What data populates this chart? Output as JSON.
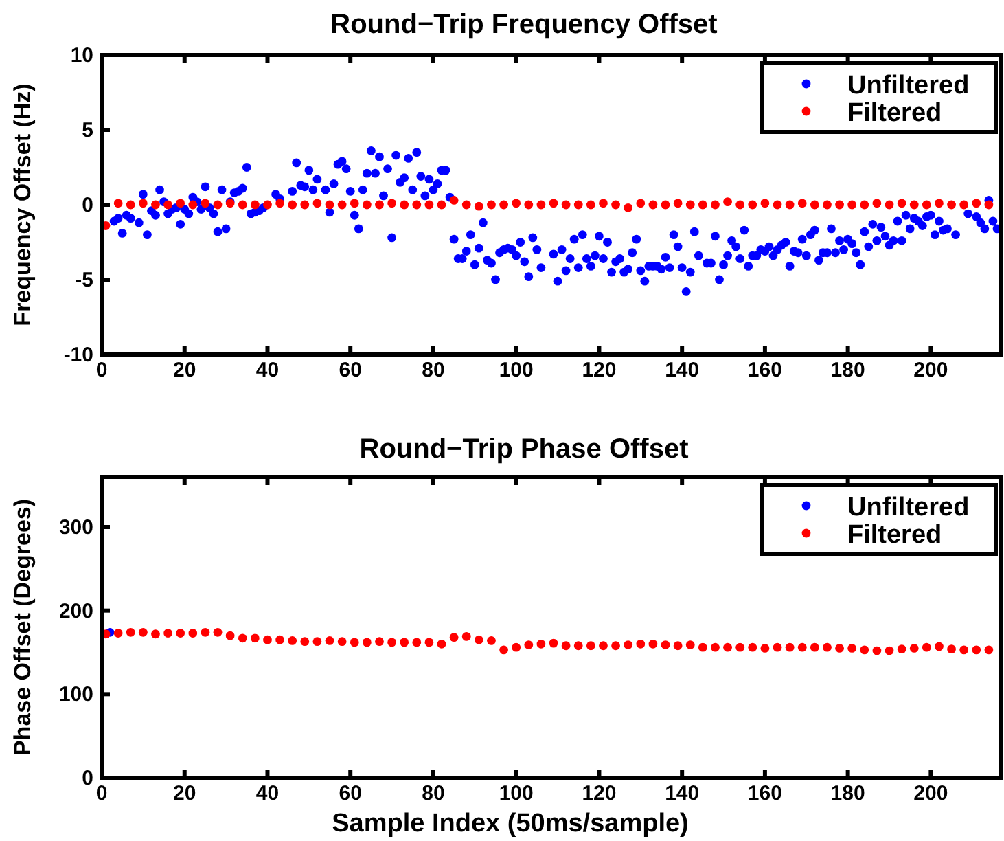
{
  "chart_data": [
    {
      "type": "scatter",
      "title": "Round−Trip Frequency Offset",
      "ylabel": "Frequency Offset (Hz)",
      "xlim": [
        0,
        217
      ],
      "xticks": [
        0,
        20,
        40,
        60,
        80,
        100,
        120,
        140,
        160,
        180,
        200
      ],
      "ylim": [
        -10,
        10
      ],
      "yticks": [
        -10,
        -5,
        0,
        5,
        10
      ],
      "legend": "top right",
      "marker": "circle",
      "grid": false,
      "series": [
        {
          "name": "Unfiltered",
          "color": "#0000ff",
          "x": [
            3,
            4,
            5,
            6,
            7,
            9,
            10,
            11,
            12,
            13,
            14,
            15,
            16,
            17,
            18,
            19,
            20,
            21,
            22,
            23,
            24,
            25,
            26,
            27,
            28,
            29,
            30,
            31,
            32,
            33,
            34,
            35,
            36,
            37,
            38,
            39,
            42,
            43,
            46,
            47,
            48,
            49,
            50,
            51,
            52,
            54,
            55,
            56,
            57,
            58,
            59,
            60,
            61,
            62,
            63,
            64,
            65,
            66,
            67,
            68,
            69,
            70,
            71,
            72,
            73,
            74,
            75,
            76,
            77,
            78,
            79,
            80,
            81,
            82,
            83,
            84,
            85,
            86,
            87,
            88,
            89,
            90,
            91,
            92,
            93,
            94,
            95,
            96,
            97,
            98,
            99,
            100,
            101,
            102,
            103,
            104,
            105,
            106,
            109,
            110,
            111,
            112,
            113,
            114,
            115,
            116,
            117,
            118,
            119,
            120,
            121,
            122,
            123,
            124,
            125,
            126,
            127,
            128,
            129,
            130,
            131,
            132,
            133,
            134,
            135,
            136,
            137,
            138,
            139,
            140,
            141,
            142,
            143,
            144,
            146,
            147,
            148,
            149,
            150,
            151,
            152,
            153,
            154,
            155,
            156,
            157,
            158,
            159,
            160,
            161,
            162,
            163,
            164,
            165,
            166,
            167,
            168,
            169,
            170,
            171,
            172,
            173,
            174,
            175,
            176,
            177,
            178,
            179,
            180,
            181,
            182,
            183,
            184,
            185,
            186,
            187,
            188,
            189,
            190,
            191,
            192,
            193,
            194,
            195,
            196,
            197,
            198,
            199,
            200,
            201,
            202,
            203,
            204,
            206,
            209,
            211,
            212,
            213,
            214,
            215,
            216
          ],
          "values": [
            -1.1,
            -0.9,
            -1.9,
            -0.7,
            -0.9,
            -1.2,
            0.7,
            -2.0,
            -0.4,
            -0.7,
            1.0,
            0.2,
            -0.6,
            -0.3,
            -0.2,
            -1.3,
            -0.3,
            -0.6,
            0.5,
            0.2,
            -0.3,
            1.2,
            -0.2,
            -0.6,
            -1.8,
            1.0,
            -1.6,
            0.2,
            0.8,
            0.9,
            1.1,
            2.5,
            -0.6,
            -0.5,
            -0.4,
            -0.2,
            0.7,
            0.4,
            0.9,
            2.8,
            1.3,
            1.2,
            2.3,
            1.0,
            1.7,
            1.0,
            -0.5,
            1.4,
            2.7,
            2.9,
            2.4,
            0.9,
            -0.7,
            -1.6,
            1.0,
            2.1,
            3.6,
            2.1,
            3.2,
            0.6,
            2.4,
            -2.2,
            3.3,
            1.5,
            1.8,
            3.1,
            1.0,
            3.5,
            1.9,
            0.6,
            1.7,
            1.0,
            1.4,
            2.3,
            2.3,
            0.5,
            -2.3,
            -3.6,
            -3.6,
            -3.1,
            -2.0,
            -4.0,
            -2.9,
            -1.2,
            -3.7,
            -3.9,
            -5.0,
            -3.2,
            -3.0,
            -2.9,
            -3.0,
            -3.4,
            -2.5,
            -3.8,
            -4.8,
            -2.2,
            -3.0,
            -4.2,
            -3.3,
            -5.1,
            -3.0,
            -4.4,
            -3.6,
            -2.3,
            -4.2,
            -2.0,
            -3.6,
            -4.1,
            -3.4,
            -2.1,
            -3.6,
            -2.5,
            -4.5,
            -3.8,
            -3.6,
            -4.5,
            -4.3,
            -3.2,
            -2.3,
            -4.4,
            -5.1,
            -4.1,
            -4.1,
            -4.1,
            -4.3,
            -3.5,
            -4.2,
            -2.0,
            -2.8,
            -4.2,
            -5.8,
            -4.5,
            -1.8,
            -3.4,
            -3.9,
            -3.9,
            -2.1,
            -5.0,
            -4.0,
            -3.4,
            -2.4,
            -2.8,
            -3.6,
            -1.7,
            -4.1,
            -3.4,
            -3.4,
            -3.0,
            -3.1,
            -2.8,
            -3.4,
            -3.0,
            -2.7,
            -2.5,
            -4.1,
            -3.1,
            -3.2,
            -2.3,
            -3.4,
            -2.0,
            -1.7,
            -3.7,
            -3.2,
            -3.2,
            -1.6,
            -3.2,
            -2.4,
            -3.0,
            -2.3,
            -2.6,
            -3.2,
            -4.0,
            -1.8,
            -2.8,
            -1.3,
            -2.4,
            -1.5,
            -2.1,
            -2.7,
            -2.4,
            -1.1,
            -2.4,
            -0.7,
            -1.6,
            -0.9,
            -1.1,
            -1.4,
            -0.8,
            -0.7,
            -2.0,
            -1.1,
            -1.7,
            -1.6,
            -2.0,
            -0.6,
            -0.8,
            -1.2,
            -1.6,
            0.3,
            -1.1,
            -1.6
          ]
        },
        {
          "name": "Filtered",
          "color": "#ff0000",
          "x": [
            1,
            4,
            7,
            10,
            13,
            16,
            19,
            22,
            25,
            28,
            31,
            34,
            37,
            40,
            43,
            46,
            49,
            52,
            55,
            58,
            61,
            64,
            67,
            70,
            73,
            76,
            79,
            82,
            85,
            88,
            91,
            94,
            97,
            100,
            103,
            106,
            109,
            112,
            115,
            118,
            121,
            124,
            127,
            130,
            133,
            136,
            139,
            142,
            145,
            148,
            151,
            154,
            157,
            160,
            163,
            166,
            169,
            172,
            175,
            178,
            181,
            184,
            187,
            190,
            193,
            196,
            199,
            202,
            205,
            208,
            211,
            214
          ],
          "values": [
            -1.4,
            0.1,
            0,
            0.1,
            0,
            0,
            0.1,
            0,
            0.1,
            0,
            0.1,
            0,
            0,
            0,
            0.1,
            0,
            0,
            0.1,
            0,
            0,
            0.1,
            0,
            0,
            0.1,
            0,
            0,
            0,
            0,
            0.3,
            0,
            -0.1,
            0,
            0,
            0.1,
            0,
            0,
            0.1,
            0,
            0,
            0,
            0.1,
            0,
            -0.2,
            0.1,
            0,
            0,
            0.1,
            0,
            0,
            0,
            0.2,
            0,
            0,
            0.1,
            0,
            0,
            0.1,
            0,
            0,
            0,
            0,
            0,
            0.1,
            0,
            0.1,
            0,
            0,
            0.1,
            0,
            0,
            0.1,
            0
          ]
        }
      ]
    },
    {
      "type": "scatter",
      "title": "Round−Trip Phase Offset",
      "xlabel": "Sample Index (50ms/sample)",
      "ylabel": "Phase Offset (Degrees)",
      "xlim": [
        0,
        217
      ],
      "xticks": [
        0,
        20,
        40,
        60,
        80,
        100,
        120,
        140,
        160,
        180,
        200
      ],
      "ylim": [
        0,
        360
      ],
      "yticks": [
        0,
        100,
        200,
        300
      ],
      "legend": "top right",
      "marker": "circle",
      "grid": false,
      "series": [
        {
          "name": "Unfiltered",
          "color": "#0000ff",
          "x": [
            2
          ],
          "values": [
            174
          ]
        },
        {
          "name": "Filtered",
          "color": "#ff0000",
          "x": [
            1,
            4,
            7,
            10,
            13,
            16,
            19,
            22,
            25,
            28,
            31,
            34,
            37,
            40,
            43,
            46,
            49,
            52,
            55,
            58,
            61,
            64,
            67,
            70,
            73,
            76,
            79,
            82,
            85,
            88,
            91,
            94,
            97,
            100,
            103,
            106,
            109,
            112,
            115,
            118,
            121,
            124,
            127,
            130,
            133,
            136,
            139,
            142,
            145,
            148,
            151,
            154,
            157,
            160,
            163,
            166,
            169,
            172,
            175,
            178,
            181,
            184,
            187,
            190,
            193,
            196,
            199,
            202,
            205,
            208,
            211,
            214
          ],
          "values": [
            172,
            173,
            174,
            174,
            172,
            173,
            173,
            173,
            174,
            174,
            170,
            167,
            167,
            165,
            165,
            164,
            163,
            163,
            164,
            163,
            162,
            162,
            163,
            162,
            162,
            162,
            162,
            160,
            168,
            169,
            165,
            164,
            153,
            156,
            159,
            160,
            161,
            158,
            158,
            158,
            158,
            158,
            159,
            160,
            160,
            159,
            158,
            159,
            156,
            156,
            156,
            156,
            156,
            155,
            156,
            156,
            156,
            156,
            156,
            155,
            155,
            153,
            152,
            152,
            154,
            155,
            156,
            157,
            154,
            153,
            153,
            153
          ]
        }
      ]
    }
  ]
}
